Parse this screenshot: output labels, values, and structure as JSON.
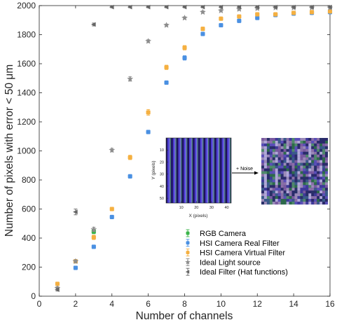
{
  "chart_data": {
    "type": "scatter",
    "xlabel": "Number of channels",
    "ylabel": "Number of pixels with error < 50 μm",
    "xlim": [
      0,
      16
    ],
    "ylim": [
      0,
      2000
    ],
    "xticks": [
      0,
      2,
      4,
      6,
      8,
      10,
      12,
      14,
      16
    ],
    "yticks": [
      0,
      200,
      400,
      600,
      800,
      1000,
      1200,
      1400,
      1600,
      1800,
      2000
    ],
    "grid": false,
    "legend_position": "bottom-right",
    "series": [
      {
        "name": "RGB Camera",
        "color": "#3cb44b",
        "marker": "square",
        "x": [
          3
        ],
        "y": [
          445
        ],
        "err": [
          15
        ]
      },
      {
        "name": "HSI Camera Real Filter",
        "color": "#4a90e2",
        "marker": "square",
        "x": [
          2,
          3,
          4,
          5,
          6,
          7,
          8,
          9,
          10,
          11,
          12,
          13,
          14,
          15,
          16
        ],
        "y": [
          195,
          340,
          545,
          825,
          1130,
          1470,
          1640,
          1805,
          1865,
          1895,
          1915,
          1935,
          1945,
          1950,
          1955
        ],
        "err": [
          12,
          12,
          12,
          12,
          12,
          12,
          15,
          12,
          10,
          10,
          8,
          8,
          8,
          8,
          8
        ]
      },
      {
        "name": "HSI Camera Virtual Filter",
        "color": "#f5b041",
        "marker": "square",
        "x": [
          1,
          2,
          3,
          4,
          5,
          6,
          7,
          8,
          9,
          10,
          11,
          12,
          13,
          14,
          15,
          16
        ],
        "y": [
          85,
          240,
          405,
          600,
          955,
          1265,
          1575,
          1710,
          1840,
          1910,
          1925,
          1940,
          1940,
          1950,
          1955,
          1960
        ],
        "err": [
          10,
          12,
          15,
          12,
          15,
          20,
          15,
          15,
          12,
          10,
          10,
          8,
          8,
          8,
          8,
          8
        ]
      },
      {
        "name": "Ideal Light source",
        "color": "#8c8c8c",
        "marker": "star",
        "x": [
          1,
          2,
          3,
          4,
          5,
          6,
          7,
          8,
          9,
          10,
          11,
          12,
          13,
          14,
          15,
          16
        ],
        "y": [
          55,
          240,
          460,
          1005,
          1495,
          1755,
          1865,
          1915,
          1955,
          1965,
          1975,
          1980,
          1985,
          1985,
          1985,
          1985
        ],
        "err": [
          10,
          10,
          15,
          12,
          15,
          10,
          8,
          8,
          8,
          8,
          6,
          6,
          6,
          6,
          6,
          6
        ]
      },
      {
        "name": "Ideal Filter (Hat functions)",
        "color": "#666666",
        "marker": "triangle-left",
        "x": [
          1,
          2,
          3,
          4,
          5,
          6,
          7,
          8,
          9,
          10,
          11,
          12,
          13,
          14,
          15,
          16
        ],
        "y": [
          45,
          580,
          1870,
          1990,
          1990,
          1990,
          1990,
          1990,
          1990,
          1990,
          1990,
          1990,
          1990,
          1990,
          1990,
          1990
        ],
        "err": [
          10,
          20,
          10,
          5,
          5,
          5,
          5,
          5,
          5,
          5,
          5,
          5,
          5,
          5,
          5,
          5
        ]
      }
    ],
    "inset": {
      "arrow_label": "+ Noise",
      "xlabel": "X (pixels)",
      "ylabel": "Y (pixels)",
      "xticks": [
        "10",
        "20",
        "30",
        "40"
      ],
      "yticks": [
        "10",
        "20",
        "30",
        "40",
        "50"
      ]
    }
  }
}
